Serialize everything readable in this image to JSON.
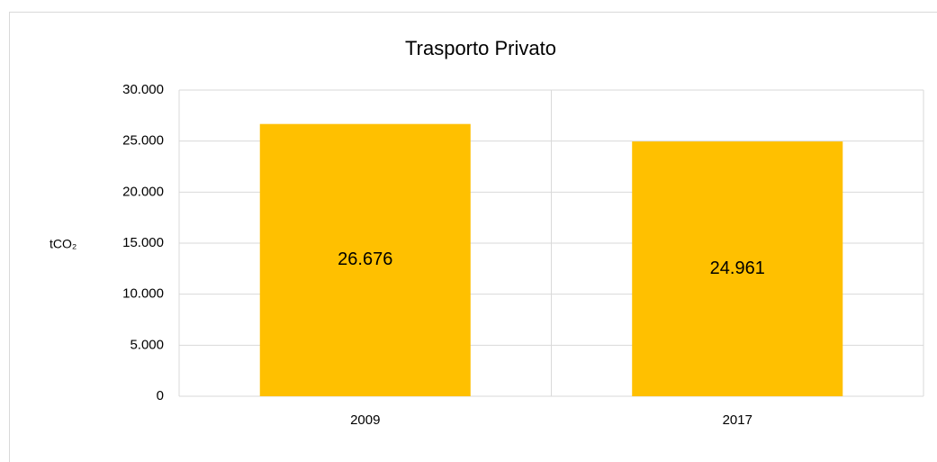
{
  "chart_data": {
    "type": "bar",
    "title": "Trasporto Privato",
    "y_label": "tCO₂",
    "categories": [
      "2009",
      "2017"
    ],
    "values": [
      26676,
      24961
    ],
    "value_labels": [
      "26.676",
      "24.961"
    ],
    "color": "#ffc000",
    "ylim": [
      0,
      30000
    ],
    "yticks": [
      0,
      {
        "value": 5000,
        "label": "5.000"
      },
      {
        "value": 10000,
        "label": "10.000"
      },
      {
        "value": 15000,
        "label": "15.000"
      },
      {
        "value": 20000,
        "label": "20.000"
      },
      {
        "value": 25000,
        "label": "25.000"
      },
      {
        "value": 30000,
        "label": "30.000"
      }
    ],
    "grid": true
  }
}
